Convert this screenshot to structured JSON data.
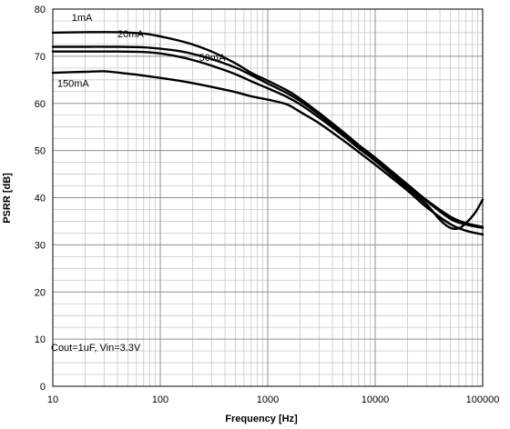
{
  "chart_data": {
    "type": "line",
    "title": "",
    "xlabel": "Frequency [Hz]",
    "ylabel": "PSRR [dB]",
    "xscale": "log",
    "xlim": [
      10,
      100000
    ],
    "ylim": [
      0,
      80
    ],
    "yticks": [
      0,
      10,
      20,
      30,
      40,
      50,
      60,
      70,
      80
    ],
    "xticks": [
      10,
      100,
      1000,
      10000,
      100000
    ],
    "xtick_labels": [
      "10",
      "100",
      "1000",
      "10000",
      "100000"
    ],
    "ytick_labels": [
      "0",
      "10",
      "20",
      "30",
      "40",
      "50",
      "60",
      "70",
      "80"
    ],
    "grid": true,
    "annotation": "Cout=1uF, Vin=3.3V",
    "line_color": "#000000",
    "series": [
      {
        "name": "1mA",
        "x": [
          10,
          20,
          40,
          70,
          100,
          150,
          200,
          300,
          500,
          700,
          1000,
          1500,
          2000,
          3000,
          5000,
          7000,
          10000,
          20000,
          30000,
          50000,
          70000,
          100000
        ],
        "y": [
          75,
          75.1,
          75.1,
          74.8,
          74.2,
          73.3,
          72.5,
          71,
          68.5,
          66.5,
          64.8,
          62.8,
          61,
          58,
          54,
          51.2,
          48.5,
          42.8,
          39.5,
          36,
          34.6,
          33.8
        ]
      },
      {
        "name": "20mA",
        "x": [
          10,
          20,
          40,
          70,
          100,
          150,
          200,
          300,
          500,
          700,
          1000,
          1500,
          2000,
          3000,
          5000,
          7000,
          10000,
          20000,
          30000,
          50000,
          70000,
          100000
        ],
        "y": [
          72,
          72,
          72,
          71.9,
          71.6,
          71.1,
          70.5,
          69.4,
          67.6,
          66,
          64.2,
          62.2,
          60.5,
          57.6,
          53.6,
          50.8,
          48.1,
          42.5,
          39.3,
          35.5,
          34.3,
          33.6
        ]
      },
      {
        "name": "50mA",
        "x": [
          10,
          20,
          40,
          70,
          100,
          150,
          200,
          300,
          500,
          700,
          1000,
          1500,
          2000,
          3000,
          5000,
          7000,
          10000,
          20000,
          30000,
          40000,
          50000,
          60000,
          70000,
          85000,
          100000
        ],
        "y": [
          71,
          71,
          71,
          70.9,
          70.6,
          69.9,
          69.2,
          68,
          66.2,
          64.7,
          63.2,
          61.4,
          59.8,
          57,
          53.2,
          50.5,
          47.8,
          42,
          38.6,
          35.3,
          33.6,
          33.5,
          34.6,
          36.8,
          39.6
        ]
      },
      {
        "name": "150mA",
        "x": [
          10,
          20,
          30,
          50,
          70,
          100,
          150,
          200,
          300,
          500,
          700,
          1000,
          1500,
          2000,
          3000,
          5000,
          7000,
          10000,
          20000,
          30000,
          50000,
          70000,
          100000
        ],
        "y": [
          66.5,
          66.7,
          66.8,
          66.3,
          65.9,
          65.4,
          64.8,
          64.3,
          63.5,
          62.4,
          61.5,
          60.8,
          59.8,
          58.2,
          55.8,
          52.2,
          49.7,
          47,
          41.5,
          38,
          34.4,
          33,
          32.2
        ]
      }
    ]
  }
}
